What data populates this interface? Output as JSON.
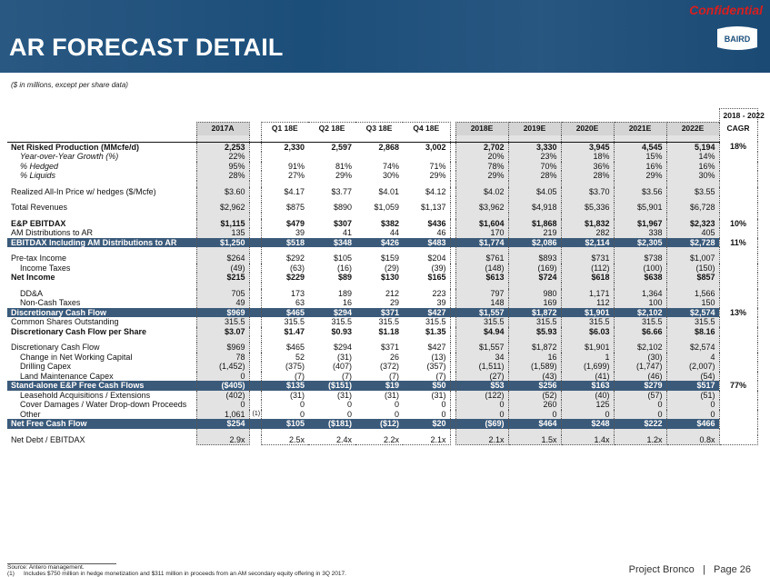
{
  "header": {
    "title": "AR FORECAST DETAIL",
    "confidential": "Confidential",
    "logo_text": "BAIRD"
  },
  "subtitle": "($ in millions, except per share data)",
  "cagr_header": [
    "2018 - 2022",
    "CAGR"
  ],
  "columns": [
    "2017A",
    "Q1 18E",
    "Q2 18E",
    "Q3 18E",
    "Q4 18E",
    "2018E",
    "2019E",
    "2020E",
    "2021E",
    "2022E"
  ],
  "rows": [
    {
      "label": "Net Risked Production (MMcfe/d)",
      "values": [
        "2,253",
        "2,330",
        "2,597",
        "2,868",
        "3,002",
        "2,702",
        "3,330",
        "3,945",
        "4,545",
        "5,194"
      ],
      "cagr": "18%"
    },
    {
      "label": "Year-over-Year Growth (%)",
      "values": [
        "22%",
        "",
        "",
        "",
        "",
        "20%",
        "23%",
        "18%",
        "15%",
        "14%"
      ],
      "cagr": ""
    },
    {
      "label": "% Hedged",
      "values": [
        "95%",
        "91%",
        "81%",
        "74%",
        "71%",
        "78%",
        "70%",
        "36%",
        "16%",
        "16%"
      ],
      "cagr": ""
    },
    {
      "label": "% Liquids",
      "values": [
        "28%",
        "27%",
        "29%",
        "30%",
        "29%",
        "29%",
        "28%",
        "28%",
        "29%",
        "30%"
      ],
      "cagr": ""
    },
    {
      "label": "Realized All-In Price w/ hedges ($/Mcfe)",
      "values": [
        "$3.60",
        "$4.17",
        "$3.77",
        "$4.01",
        "$4.12",
        "$4.02",
        "$4.05",
        "$3.70",
        "$3.56",
        "$3.55"
      ],
      "cagr": ""
    },
    {
      "label": "Total Revenues",
      "values": [
        "$2,962",
        "$875",
        "$890",
        "$1,059",
        "$1,137",
        "$3,962",
        "$4,918",
        "$5,336",
        "$5,901",
        "$6,728"
      ],
      "cagr": ""
    },
    {
      "label": "E&P EBITDAX",
      "values": [
        "$1,115",
        "$479",
        "$307",
        "$382",
        "$436",
        "$1,604",
        "$1,868",
        "$1,832",
        "$1,967",
        "$2,323"
      ],
      "cagr": "10%"
    },
    {
      "label": "AM Distributions to AR",
      "values": [
        "135",
        "39",
        "41",
        "44",
        "46",
        "170",
        "219",
        "282",
        "338",
        "405"
      ],
      "cagr": ""
    },
    {
      "label": "EBITDAX Including AM Distributions to AR",
      "values": [
        "$1,250",
        "$518",
        "$348",
        "$426",
        "$483",
        "$1,774",
        "$2,086",
        "$2,114",
        "$2,305",
        "$2,728"
      ],
      "cagr": "11%"
    },
    {
      "label": "Pre-tax Income",
      "values": [
        "$264",
        "$292",
        "$105",
        "$159",
        "$204",
        "$761",
        "$893",
        "$731",
        "$738",
        "$1,007"
      ],
      "cagr": ""
    },
    {
      "label": "Income Taxes",
      "values": [
        "(49)",
        "(63)",
        "(16)",
        "(29)",
        "(39)",
        "(148)",
        "(169)",
        "(112)",
        "(100)",
        "(150)"
      ],
      "cagr": ""
    },
    {
      "label": "Net Income",
      "values": [
        "$215",
        "$229",
        "$89",
        "$130",
        "$165",
        "$613",
        "$724",
        "$618",
        "$638",
        "$857"
      ],
      "cagr": ""
    },
    {
      "label": "DD&A",
      "values": [
        "705",
        "173",
        "189",
        "212",
        "223",
        "797",
        "980",
        "1,171",
        "1,364",
        "1,566"
      ],
      "cagr": ""
    },
    {
      "label": "Non-Cash Taxes",
      "values": [
        "49",
        "63",
        "16",
        "29",
        "39",
        "148",
        "169",
        "112",
        "100",
        "150"
      ],
      "cagr": ""
    },
    {
      "label": "Discretionary Cash Flow",
      "values": [
        "$969",
        "$465",
        "$294",
        "$371",
        "$427",
        "$1,557",
        "$1,872",
        "$1,901",
        "$2,102",
        "$2,574"
      ],
      "cagr": "13%"
    },
    {
      "label": "Common Shares Outstanding",
      "values": [
        "315.5",
        "315.5",
        "315.5",
        "315.5",
        "315.5",
        "315.5",
        "315.5",
        "315.5",
        "315.5",
        "315.5"
      ],
      "cagr": ""
    },
    {
      "label": "Discretionary Cash Flow per Share",
      "values": [
        "$3.07",
        "$1.47",
        "$0.93",
        "$1.18",
        "$1.35",
        "$4.94",
        "$5.93",
        "$6.03",
        "$6.66",
        "$8.16"
      ],
      "cagr": ""
    },
    {
      "label": "Discretionary Cash Flow",
      "values": [
        "$969",
        "$465",
        "$294",
        "$371",
        "$427",
        "$1,557",
        "$1,872",
        "$1,901",
        "$2,102",
        "$2,574"
      ],
      "cagr": ""
    },
    {
      "label": "Change in Net Working Capital",
      "values": [
        "78",
        "52",
        "(31)",
        "26",
        "(13)",
        "34",
        "16",
        "1",
        "(30)",
        "4"
      ],
      "cagr": ""
    },
    {
      "label": "Drilling Capex",
      "values": [
        "(1,452)",
        "(375)",
        "(407)",
        "(372)",
        "(357)",
        "(1,511)",
        "(1,589)",
        "(1,699)",
        "(1,747)",
        "(2,007)"
      ],
      "cagr": ""
    },
    {
      "label": "Land Maintenance Capex",
      "values": [
        "0",
        "(7)",
        "(7)",
        "(7)",
        "(7)",
        "(27)",
        "(43)",
        "(41)",
        "(46)",
        "(54)"
      ],
      "cagr": ""
    },
    {
      "label": "Stand-alone E&P Free Cash Flows",
      "values": [
        "($405)",
        "$135",
        "($151)",
        "$19",
        "$50",
        "$53",
        "$256",
        "$163",
        "$279",
        "$517"
      ],
      "cagr": "77%"
    },
    {
      "label": "Leasehold Acquisitions / Extensions",
      "values": [
        "(402)",
        "(31)",
        "(31)",
        "(31)",
        "(31)",
        "(122)",
        "(52)",
        "(40)",
        "(57)",
        "(51)"
      ],
      "cagr": ""
    },
    {
      "label": "Cover Damages / Water Drop-down Proceeds",
      "values": [
        "0",
        "0",
        "0",
        "0",
        "0",
        "0",
        "260",
        "125",
        "0",
        "0"
      ],
      "cagr": ""
    },
    {
      "label": "Other",
      "values": [
        "1,061",
        "0",
        "0",
        "0",
        "0",
        "0",
        "0",
        "0",
        "0",
        "0"
      ],
      "cagr": "",
      "note": "(1)"
    },
    {
      "label": "Net Free Cash Flow",
      "values": [
        "$254",
        "$105",
        "($181)",
        "($12)",
        "$20",
        "($69)",
        "$464",
        "$248",
        "$222",
        "$466"
      ],
      "cagr": ""
    },
    {
      "label": "Net Debt / EBITDAX",
      "values": [
        "2.9x",
        "2.5x",
        "2.4x",
        "2.2x",
        "2.1x",
        "2.1x",
        "1.5x",
        "1.4x",
        "1.2x",
        "0.8x"
      ],
      "cagr": ""
    }
  ],
  "footer": {
    "source": "Source: Antero management.",
    "note_num": "(1)",
    "note": "Includes $750 million in hedge monetization and $311 million in proceeds from an AM secondary equity offering in 3Q 2017.",
    "project": "Project Bronco",
    "separator": "|",
    "page": "Page 26"
  }
}
